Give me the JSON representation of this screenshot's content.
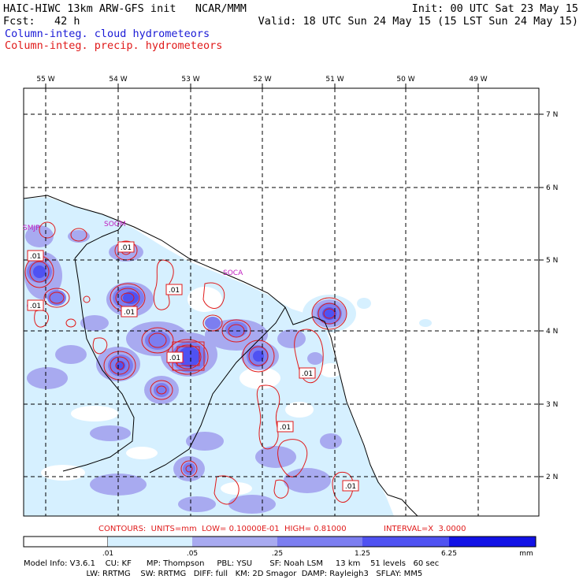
{
  "header": {
    "line1_left": "HAIC-HIWC 13km ARW-GFS init   NCAR/MMM",
    "line1_right": "Init: 00 UTC Sat 23 May 15",
    "line2_left": "Fcst:   42 h",
    "line2_right": "Valid: 18 UTC Sun 24 May 15 (15 LST Sun 24 May 15)",
    "field_cloud": "Column-integ. cloud hydrometeors",
    "field_precip": "Column-integ. precip. hydrometeors"
  },
  "map": {
    "longitude_labels": [
      "55 W",
      "54 W",
      "53 W",
      "52 W",
      "51 W",
      "50 W",
      "49 W"
    ],
    "latitude_labels": [
      "7 N",
      "6 N",
      "5 N",
      "4 N",
      "3 N",
      "2 N"
    ],
    "station_labels": [
      "SMJP",
      "SOCA",
      "SOCA",
      "SOOM"
    ],
    "contour_labels": [
      ".01",
      ".01",
      ".01",
      ".01",
      ".01",
      ".01",
      ".01",
      ".01",
      ".01"
    ],
    "colors": {
      "shade_1": "#d6f0ff",
      "shade_2": "#a8aaf0",
      "shade_3": "#7c7ef0",
      "shade_4": "#4f52f2",
      "shade_5": "#2f2fee",
      "contour": "#e01a1a",
      "grid": "#000000"
    }
  },
  "contour_info": {
    "label": "CONTOURS:  UNITS=mm  LOW= 0.10000E-01  HIGH= 0.81000",
    "interval": "INTERVAL=X  3.0000"
  },
  "colorbar": {
    "ticks": [
      ".01",
      ".05",
      ".25",
      "1.25",
      "6.25"
    ],
    "units": "mm",
    "colors": [
      "#ffffff",
      "#d6f0ff",
      "#a8aaf0",
      "#7c7ef0",
      "#4f52f2",
      "#2f2fee",
      "#1212e6"
    ]
  },
  "model_info": {
    "line1": "Model Info: V3.6.1    CU: KF      MP: Thompson     PBL: YSU       SF: Noah LSM     13 km    51 levels   60 sec",
    "line2": "                         LW: RRTMG    SW: RRTMG   DIFF: full   KM: 2D Smagor  DAMP: Rayleigh3   SFLAY: MM5"
  }
}
